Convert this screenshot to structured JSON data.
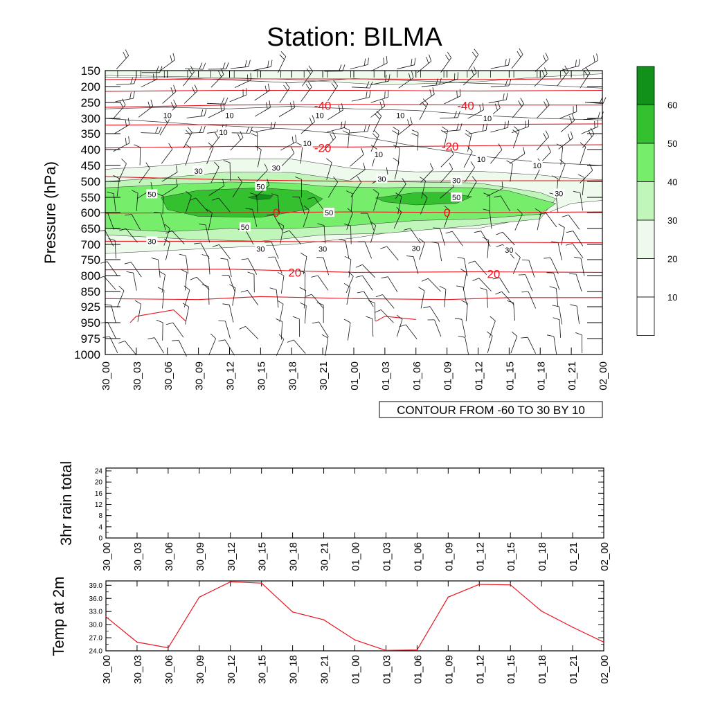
{
  "title": "Station: BILMA",
  "contour_note": "CONTOUR FROM -60 TO 30 BY 10",
  "colors": {
    "shade": [
      "#ffffff",
      "#ffffff",
      "#eefbec",
      "#c0f6ba",
      "#76ee6c",
      "#34c130",
      "#12911a"
    ],
    "temp_contour": "#e8141e",
    "line": "#e8141e",
    "axis": "#000000"
  },
  "chart_data": [
    {
      "type": "heatmap",
      "name": "cross-section",
      "ylabel": "Pressure (hPa)",
      "pressure_levels": [
        150,
        200,
        250,
        300,
        350,
        400,
        450,
        500,
        550,
        600,
        650,
        700,
        750,
        800,
        850,
        925,
        950,
        975,
        1000
      ],
      "time_labels": [
        "30_00",
        "30_03",
        "30_06",
        "30_09",
        "30_12",
        "30_15",
        "30_18",
        "30_21",
        "01_00",
        "01_03",
        "01_06",
        "01_09",
        "01_12",
        "01_15",
        "01_18",
        "01_21",
        "02_00"
      ],
      "colorbar_levels": [
        10,
        20,
        30,
        40,
        50,
        60
      ],
      "humidity_contour_labels": [
        {
          "text": "10",
          "time": 2.0,
          "p": 290
        },
        {
          "text": "10",
          "time": 4.0,
          "p": 290
        },
        {
          "text": "10",
          "time": 6.9,
          "p": 290
        },
        {
          "text": "10",
          "time": 9.5,
          "p": 290
        },
        {
          "text": "10",
          "time": 12.3,
          "p": 300
        },
        {
          "text": "10",
          "time": 3.8,
          "p": 345
        },
        {
          "text": "10",
          "time": 6.5,
          "p": 380
        },
        {
          "text": "10",
          "time": 8.8,
          "p": 415
        },
        {
          "text": "10",
          "time": 12.1,
          "p": 430
        },
        {
          "text": "10",
          "time": 13.9,
          "p": 450
        },
        {
          "text": "30",
          "time": 3.0,
          "p": 467
        },
        {
          "text": "30",
          "time": 5.5,
          "p": 458
        },
        {
          "text": "30",
          "time": 8.9,
          "p": 492
        },
        {
          "text": "30",
          "time": 11.3,
          "p": 497
        },
        {
          "text": "30",
          "time": 14.6,
          "p": 538
        },
        {
          "text": "50",
          "time": 1.5,
          "p": 540
        },
        {
          "text": "50",
          "time": 5.0,
          "p": 516
        },
        {
          "text": "50",
          "time": 7.2,
          "p": 600
        },
        {
          "text": "50",
          "time": 11.3,
          "p": 550
        },
        {
          "text": "50",
          "time": 4.5,
          "p": 646
        },
        {
          "text": "30",
          "time": 1.5,
          "p": 690
        },
        {
          "text": "30",
          "time": 5.0,
          "p": 715
        },
        {
          "text": "30",
          "time": 7.0,
          "p": 715
        },
        {
          "text": "30",
          "time": 10.0,
          "p": 712
        },
        {
          "text": "30",
          "time": 13.0,
          "p": 718
        }
      ],
      "temperature_contour_labels": [
        {
          "text": "-40",
          "time": 7.0,
          "p": 260
        },
        {
          "text": "-40",
          "time": 11.6,
          "p": 260
        },
        {
          "text": "-20",
          "time": 7.0,
          "p": 395
        },
        {
          "text": "-20",
          "time": 11.1,
          "p": 390
        },
        {
          "text": "0",
          "time": 5.5,
          "p": 600
        },
        {
          "text": "0",
          "time": 11.0,
          "p": 600
        },
        {
          "text": "20",
          "time": 6.1,
          "p": 790
        },
        {
          "text": "20",
          "time": 12.5,
          "p": 795
        }
      ]
    },
    {
      "type": "line",
      "name": "3hr-rain",
      "ylabel": "3hr rain total",
      "categories": [
        "30_00",
        "30_03",
        "30_06",
        "30_09",
        "30_12",
        "30_15",
        "30_18",
        "30_21",
        "01_00",
        "01_03",
        "01_06",
        "01_09",
        "01_12",
        "01_15",
        "01_18",
        "01_21",
        "02_00"
      ],
      "values": [
        0,
        0,
        0,
        0,
        0,
        0,
        0,
        0,
        0,
        0,
        0,
        0,
        0,
        0,
        0,
        0,
        0
      ],
      "ylim": [
        0,
        25
      ],
      "yticks": [
        "0",
        "4",
        "8",
        "12",
        "16",
        "20",
        "24"
      ]
    },
    {
      "type": "line",
      "name": "temp-2m",
      "ylabel": "Temp at 2m",
      "categories": [
        "30_00",
        "30_03",
        "30_06",
        "30_09",
        "30_12",
        "30_15",
        "30_18",
        "30_21",
        "01_00",
        "01_03",
        "01_06",
        "01_09",
        "01_12",
        "01_15",
        "01_18",
        "01_21",
        "02_00"
      ],
      "values": [
        31.8,
        26.0,
        24.7,
        36.3,
        39.8,
        39.5,
        32.9,
        31.1,
        26.5,
        24.1,
        24.2,
        36.3,
        39.2,
        39.1,
        33.1,
        29.4,
        26.0
      ],
      "ylim": [
        24.0,
        40.0
      ],
      "yticks": [
        "24.0",
        "27.0",
        "30.0",
        "33.0",
        "36.0",
        "39.0"
      ]
    }
  ]
}
